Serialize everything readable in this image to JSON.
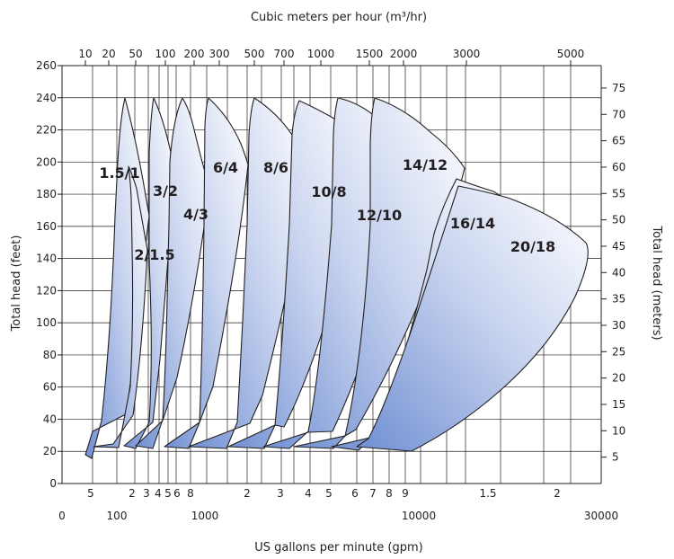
{
  "chart_data": {
    "type": "area",
    "title": "",
    "top_axis": {
      "label": "Cubic meters per hour (m³/hr)",
      "ticks": [
        "10",
        "20",
        "50",
        "100",
        "200",
        "300",
        "500",
        "700",
        "1000",
        "1500",
        "2000",
        "3000",
        "5000"
      ],
      "scale": "log"
    },
    "bottom_axis": {
      "label": "US gallons per minute (gpm)",
      "scale": "log",
      "xlim": [
        30,
        30000
      ],
      "major_ticks": [
        "0",
        "100",
        "1000",
        "10000",
        "30000"
      ],
      "minor_ticks": [
        "5",
        "2",
        "3",
        "4",
        "5",
        "6",
        "8",
        "2",
        "3",
        "4",
        "5",
        "6",
        "7",
        "8",
        "9",
        "1.5",
        "2"
      ]
    },
    "left_axis": {
      "label": "Total head (feet)",
      "ylim": [
        0,
        260
      ],
      "ticks": [
        0,
        20,
        40,
        60,
        80,
        100,
        120,
        140,
        160,
        180,
        200,
        220,
        240,
        260
      ]
    },
    "right_axis": {
      "label": "Total head (meters)",
      "ticks": [
        5,
        10,
        15,
        20,
        25,
        30,
        35,
        40,
        45,
        50,
        55,
        60,
        65,
        70,
        75
      ]
    },
    "grid": true,
    "series": [
      {
        "name": "1.5/1",
        "flow_gpm_range": [
          46,
          196
        ],
        "head_ft_range": [
          16,
          240
        ]
      },
      {
        "name": "2/1.5",
        "flow_gpm_range": [
          57,
          208
        ],
        "head_ft_range": [
          20,
          185
        ]
      },
      {
        "name": "3/2",
        "flow_gpm_range": [
          108,
          390
        ],
        "head_ft_range": [
          20,
          240
        ]
      },
      {
        "name": "4/3",
        "flow_gpm_range": [
          159,
          595
        ],
        "head_ft_range": [
          20,
          240
        ]
      },
      {
        "name": "6/4",
        "flow_gpm_range": [
          214,
          975
        ],
        "head_ft_range": [
          20,
          240
        ]
      },
      {
        "name": "8/6",
        "flow_gpm_range": [
          417,
          2003
        ],
        "head_ft_range": [
          20,
          240
        ]
      },
      {
        "name": "10/8",
        "flow_gpm_range": [
          700,
          3676
        ],
        "head_ft_range": [
          20,
          240
        ]
      },
      {
        "name": "12/10",
        "flow_gpm_range": [
          1288,
          5260
        ],
        "head_ft_range": [
          20,
          240
        ]
      },
      {
        "name": "14/12",
        "flow_gpm_range": [
          2003,
          11280
        ],
        "head_ft_range": [
          20,
          240
        ]
      },
      {
        "name": "16/14",
        "flow_gpm_range": [
          3311,
          17460
        ],
        "head_ft_range": [
          20,
          190
        ]
      },
      {
        "name": "20/18",
        "flow_gpm_range": [
          4848,
          26015
        ],
        "head_ft_range": [
          20,
          180
        ]
      }
    ]
  }
}
